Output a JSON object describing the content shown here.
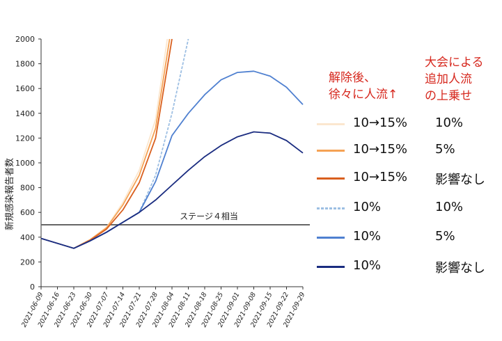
{
  "chart_data": {
    "type": "line",
    "ylabel": "新規感染報告者数",
    "ylim": [
      0,
      2000
    ],
    "yticks": [
      "0",
      "200",
      "400",
      "600",
      "800",
      "1000",
      "1200",
      "1400",
      "1600",
      "1800",
      "2000"
    ],
    "xticks": [
      "2021-06-09",
      "2021-06-16",
      "2021-06-23",
      "2021-06-30",
      "2021-07-07",
      "2021-07-14",
      "2021-07-21",
      "2021-07-28",
      "2021-08-04",
      "2021-08-11",
      "2021-08-18",
      "2021-08-25",
      "2021-09-01",
      "2021-09-08",
      "2021-09-15",
      "2021-09-22",
      "2021-09-29"
    ],
    "reference_line": {
      "value": 500,
      "label": "ステージ４相当"
    },
    "series": [
      {
        "name": "10→15% / 10%",
        "color": "#fbe7cf",
        "dash": "",
        "x": [
          "2021-06-09",
          "2021-06-16",
          "2021-06-23",
          "2021-06-30",
          "2021-07-07",
          "2021-07-14",
          "2021-07-21",
          "2021-07-28",
          "2021-08-02"
        ],
        "y": [
          390,
          350,
          310,
          380,
          480,
          680,
          940,
          1350,
          2000
        ]
      },
      {
        "name": "10→15% / 5%",
        "color": "#f5a254",
        "dash": "",
        "x": [
          "2021-06-09",
          "2021-06-16",
          "2021-06-23",
          "2021-06-30",
          "2021-07-07",
          "2021-07-14",
          "2021-07-21",
          "2021-07-28",
          "2021-08-03"
        ],
        "y": [
          390,
          350,
          310,
          380,
          475,
          660,
          900,
          1280,
          2000
        ]
      },
      {
        "name": "10→15% / 影響なし",
        "color": "#d95f1e",
        "dash": "",
        "x": [
          "2021-06-09",
          "2021-06-16",
          "2021-06-23",
          "2021-06-30",
          "2021-07-07",
          "2021-07-14",
          "2021-07-21",
          "2021-07-28",
          "2021-08-04"
        ],
        "y": [
          390,
          350,
          310,
          375,
          465,
          620,
          840,
          1200,
          2000
        ]
      },
      {
        "name": "10% / 10%",
        "color": "#9dbfe3",
        "dash": "4,2",
        "x": [
          "2021-06-09",
          "2021-06-16",
          "2021-06-23",
          "2021-06-30",
          "2021-07-07",
          "2021-07-14",
          "2021-07-21",
          "2021-07-28",
          "2021-08-04",
          "2021-08-11"
        ],
        "y": [
          390,
          350,
          310,
          370,
          440,
          520,
          600,
          900,
          1400,
          2000
        ]
      },
      {
        "name": "10% / 5%",
        "color": "#4f80d0",
        "dash": "",
        "x": [
          "2021-06-09",
          "2021-06-16",
          "2021-06-23",
          "2021-06-30",
          "2021-07-07",
          "2021-07-14",
          "2021-07-21",
          "2021-07-28",
          "2021-08-04",
          "2021-08-11",
          "2021-08-18",
          "2021-08-25",
          "2021-09-01",
          "2021-09-08",
          "2021-09-15",
          "2021-09-22",
          "2021-09-29"
        ],
        "y": [
          390,
          350,
          310,
          370,
          440,
          520,
          600,
          850,
          1220,
          1400,
          1550,
          1670,
          1730,
          1740,
          1700,
          1610,
          1470
        ]
      },
      {
        "name": "10% / 影響なし",
        "color": "#1a2c80",
        "dash": "",
        "x": [
          "2021-06-09",
          "2021-06-16",
          "2021-06-23",
          "2021-06-30",
          "2021-07-07",
          "2021-07-14",
          "2021-07-21",
          "2021-07-28",
          "2021-08-04",
          "2021-08-11",
          "2021-08-18",
          "2021-08-25",
          "2021-09-01",
          "2021-09-08",
          "2021-09-15",
          "2021-09-22",
          "2021-09-29"
        ],
        "y": [
          390,
          350,
          310,
          370,
          440,
          520,
          600,
          700,
          820,
          940,
          1050,
          1140,
          1210,
          1250,
          1240,
          1180,
          1080
        ]
      }
    ]
  },
  "legend": {
    "header_a": "解除後、\n徐々に人流↑",
    "header_b": "大会による\n追加人流\nの上乗せ",
    "rows": [
      {
        "a": "10→15%",
        "b": "10%"
      },
      {
        "a": "10→15%",
        "b": "5%"
      },
      {
        "a": "10→15%",
        "b": "影響なし"
      },
      {
        "a": "10%",
        "b": "10%"
      },
      {
        "a": "10%",
        "b": "5%"
      },
      {
        "a": "10%",
        "b": "影響なし"
      }
    ]
  }
}
